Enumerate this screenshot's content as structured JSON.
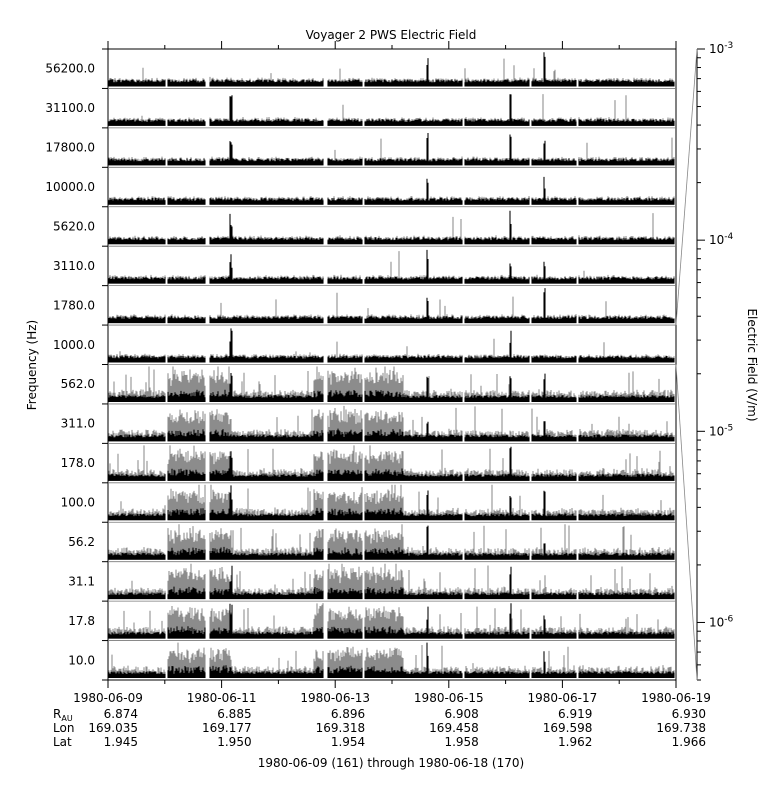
{
  "chart_data": {
    "type": "line",
    "title": "Voyager 2 PWS Electric Field",
    "ylabel": "Frequency (Hz)",
    "y2label": "Electric Field (V/m)",
    "xlabel": "1980-06-09 (161) through 1980-06-18 (170)",
    "x_range": [
      "1980-06-09",
      "1980-06-19"
    ],
    "x_tick_labels": [
      "1980-06-09",
      "1980-06-11",
      "1980-06-13",
      "1980-06-15",
      "1980-06-17",
      "1980-06-19"
    ],
    "channels": [
      "56200.0",
      "31100.0",
      "17800.0",
      "10000.0",
      "5620.0",
      "3110.0",
      "1780.0",
      "1000.0",
      "562.0",
      "311.0",
      "178.0",
      "100.0",
      "56.2",
      "31.1",
      "17.8",
      "10.0"
    ],
    "right_scale": {
      "scale": "log",
      "range": [
        5e-07,
        0.001
      ],
      "ticks": [
        {
          "value": 0.001,
          "mant": "10",
          "exp": "-3"
        },
        {
          "value": 0.0001,
          "mant": "10",
          "exp": "-4"
        },
        {
          "value": 1e-05,
          "mant": "10",
          "exp": "-5"
        },
        {
          "value": 1e-06,
          "mant": "10",
          "exp": "-6"
        }
      ]
    },
    "data_gaps": [
      [
        "1980-06-10 00:30",
        "1980-06-10 01:00"
      ],
      [
        "1980-06-10 17:00",
        "1980-06-10 19:00"
      ],
      [
        "1980-06-12 19:00",
        "1980-06-12 20:45"
      ],
      [
        "1980-06-13 11:30",
        "1980-06-13 12:30"
      ],
      [
        "1980-06-15 05:45",
        "1980-06-15 06:30"
      ],
      [
        "1980-06-16 10:00",
        "1980-06-16 10:45"
      ],
      [
        "1980-06-17 05:45",
        "1980-06-17 06:45"
      ]
    ],
    "orbit_rows": [
      {
        "label": "R",
        "sub": "AU",
        "values": [
          "6.874",
          "6.885",
          "6.896",
          "6.908",
          "6.919",
          "6.930"
        ]
      },
      {
        "label": "Lon",
        "values": [
          "169.035",
          "169.177",
          "169.318",
          "169.458",
          "169.598",
          "169.738"
        ]
      },
      {
        "label": "Lat",
        "values": [
          "1.945",
          "1.950",
          "1.954",
          "1.958",
          "1.962",
          "1.966"
        ]
      }
    ]
  }
}
